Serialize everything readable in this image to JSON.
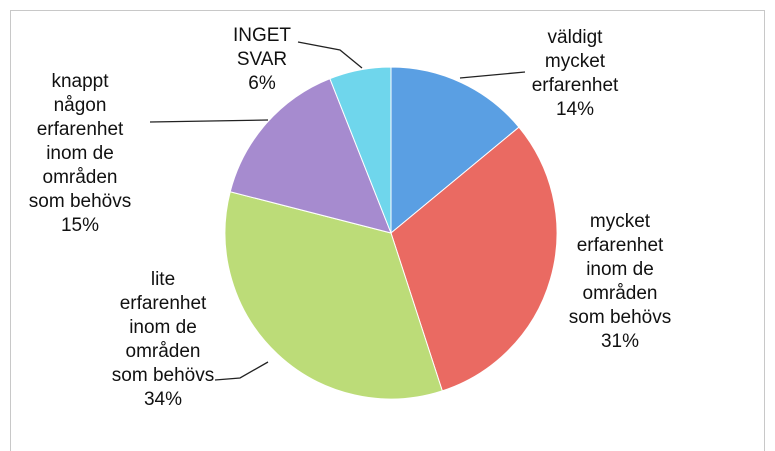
{
  "chart_data": {
    "type": "pie",
    "categories": [
      "väldigt mycket erfarenhet",
      "mycket erfarenhet inom de områden som behövs",
      "lite erfarenhet inom de områden som behövs",
      "knappt någon erfarenhet inom de områden som behövs",
      "INGET SVAR"
    ],
    "values": [
      14,
      31,
      34,
      15,
      6
    ],
    "value_labels": [
      "14%",
      "31%",
      "34%",
      "15%",
      "6%"
    ],
    "colors": [
      "#5a9fe3",
      "#ea6a62",
      "#bcdc78",
      "#a68bcf",
      "#6fd6ec"
    ]
  }
}
